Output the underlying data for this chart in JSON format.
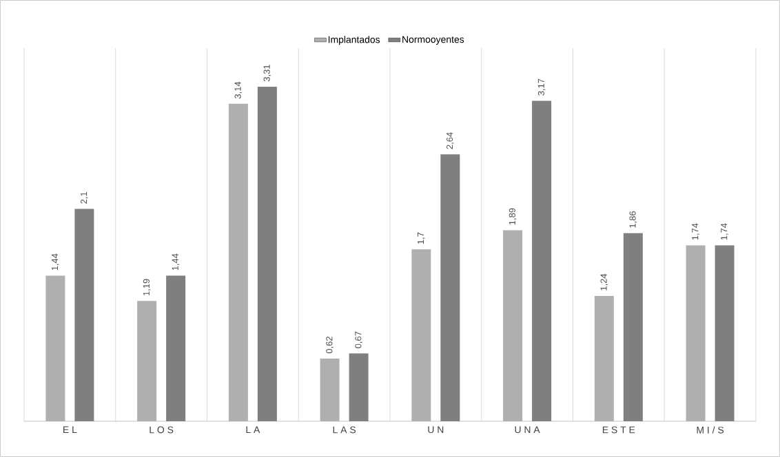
{
  "chart_data": {
    "type": "bar",
    "categories": [
      "E L",
      "L O S",
      "L A",
      "L A S",
      "U N",
      "U N A",
      "E S T E",
      "M I / S"
    ],
    "series": [
      {
        "name": "Implantados",
        "color": "#afafaf",
        "values": [
          1.44,
          1.19,
          3.14,
          0.62,
          1.7,
          1.89,
          1.24,
          1.74
        ],
        "value_labels": [
          "1,44",
          "1,19",
          "3,14",
          "0,62",
          "1,7",
          "1,89",
          "1,24",
          "1,74"
        ]
      },
      {
        "name": "Normooyentes",
        "color": "#7f7f7f",
        "values": [
          2.1,
          1.44,
          3.31,
          0.67,
          2.64,
          3.17,
          1.86,
          1.74
        ],
        "value_labels": [
          "2,1",
          "1,44",
          "3,31",
          "0,67",
          "2,64",
          "3,17",
          "1,86",
          "1,74"
        ]
      }
    ],
    "grid": "x",
    "legend": "top"
  }
}
